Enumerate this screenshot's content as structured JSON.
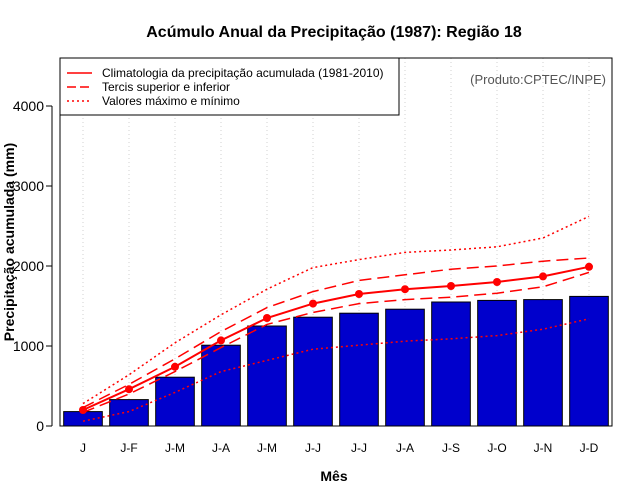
{
  "chart_data": {
    "type": "bar",
    "title": "Acúmulo Anual da Precipitação (1987): Região 18",
    "xlabel": "Mês",
    "ylabel": "Precipitação acumulada (mm)",
    "ylim": [
      0,
      4600
    ],
    "y_ticks": [
      0,
      1000,
      2000,
      3000,
      4000
    ],
    "categories": [
      "J",
      "J-F",
      "J-M",
      "J-A",
      "J-M",
      "J-J",
      "J-J",
      "J-A",
      "J-S",
      "J-O",
      "J-N",
      "J-D"
    ],
    "grid": "vertical dotted",
    "credit": "(Produto:CPTEC/INPE)",
    "legend": {
      "position": "top-left",
      "entries": [
        {
          "label": "Climatologia da precipitação acumulada (1981-2010)",
          "style": "solid"
        },
        {
          "label": "Tercis superior e inferior",
          "style": "dashed"
        },
        {
          "label": "Valores máximo e mínimo",
          "style": "dotted"
        }
      ]
    },
    "series": [
      {
        "name": "Precipitação acumulada 1987",
        "kind": "bar",
        "color": "#0000cc",
        "values": [
          180,
          330,
          610,
          1010,
          1250,
          1360,
          1410,
          1460,
          1550,
          1570,
          1580,
          1620
        ]
      },
      {
        "name": "Climatologia da precipitação acumulada (1981-2010)",
        "kind": "line",
        "style": "solid",
        "color": "#ff0000",
        "markers": true,
        "values": [
          200,
          460,
          740,
          1070,
          1350,
          1530,
          1650,
          1710,
          1750,
          1800,
          1870,
          1990
        ]
      },
      {
        "name": "Tercil superior",
        "kind": "line",
        "style": "dashed",
        "color": "#ff0000",
        "values": [
          230,
          520,
          840,
          1180,
          1480,
          1680,
          1820,
          1890,
          1960,
          2000,
          2060,
          2100
        ]
      },
      {
        "name": "Tercil inferior",
        "kind": "line",
        "style": "dashed",
        "color": "#ff0000",
        "values": [
          170,
          400,
          680,
          980,
          1270,
          1420,
          1530,
          1580,
          1610,
          1660,
          1740,
          1920
        ]
      },
      {
        "name": "Valor máximo",
        "kind": "line",
        "style": "dotted",
        "color": "#ff0000",
        "values": [
          280,
          640,
          1040,
          1390,
          1710,
          1980,
          2080,
          2170,
          2200,
          2240,
          2350,
          2620
        ]
      },
      {
        "name": "Valor mínimo",
        "kind": "line",
        "style": "dotted",
        "color": "#ff0000",
        "values": [
          60,
          180,
          420,
          680,
          820,
          960,
          1010,
          1060,
          1090,
          1130,
          1210,
          1340
        ]
      }
    ]
  }
}
